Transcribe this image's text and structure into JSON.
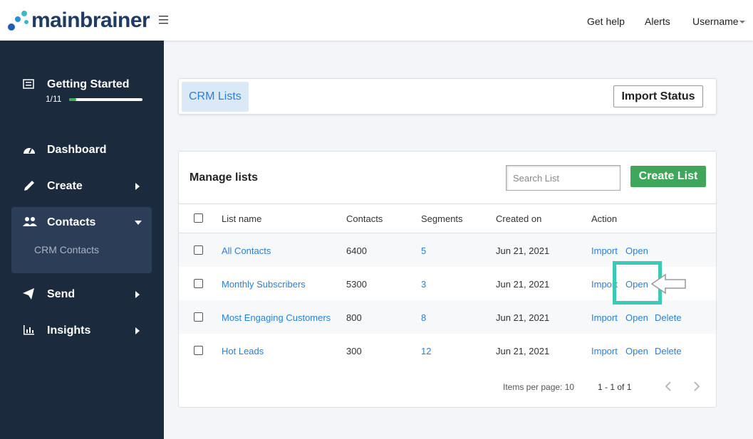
{
  "header": {
    "logo": "mainbrainer",
    "nav": [
      "Get help",
      "Alerts",
      "Username"
    ]
  },
  "sidebar": {
    "getting_started": {
      "title": "Getting Started",
      "progress": "1/11"
    },
    "items": [
      "Dashboard",
      "Create",
      "Contacts",
      "Send",
      "Insights"
    ],
    "sub_item": "CRM Contacts"
  },
  "tabs": {
    "active": "CRM Lists",
    "button": "Import Status"
  },
  "card": {
    "title": "Manage lists",
    "search_placeholder": "Search List",
    "button": "Create List"
  },
  "table": {
    "columns": [
      "List name",
      "Contacts",
      "Segments",
      "Created on",
      "Action"
    ],
    "rows": [
      {
        "name": "All Contacts",
        "contacts": 6400,
        "segments": 5,
        "created": "Jun 21, 2021",
        "actions": [
          "Import",
          "Open"
        ]
      },
      {
        "name": "Monthly Subscribers",
        "contacts": 5300,
        "segments": 3,
        "created": "Jun 21, 2021",
        "actions": [
          "Import",
          "Open"
        ]
      },
      {
        "name": "Most Engaging Customers",
        "contacts": 800,
        "segments": 8,
        "created": "Jun 21, 2021",
        "actions": [
          "Import",
          "Open",
          "Delete"
        ]
      },
      {
        "name": "Hot Leads",
        "contacts": 300,
        "segments": 12,
        "created": "Jun 21, 2021",
        "actions": [
          "Import",
          "Open",
          "Delete"
        ]
      }
    ]
  },
  "pagination": {
    "items_per_page": "Items per page: 10",
    "range": "1 - 1 of 1"
  }
}
